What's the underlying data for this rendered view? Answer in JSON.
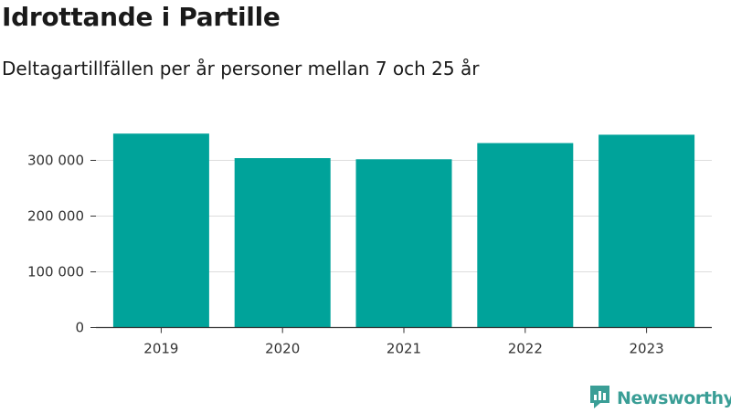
{
  "chart_data": {
    "type": "bar",
    "title": "Idrottande i Partille",
    "subtitle": "Deltagartillfällen per år personer mellan 7 och 25 år",
    "categories": [
      "2019",
      "2020",
      "2021",
      "2022",
      "2023"
    ],
    "values": [
      348000,
      304000,
      302000,
      331000,
      346000
    ],
    "ylim": [
      0,
      350000
    ],
    "yticks": [
      0,
      100000,
      200000,
      300000
    ],
    "ytick_labels": [
      "0",
      "100 000",
      "200 000",
      "300 000"
    ],
    "xlabel": "",
    "ylabel": "",
    "grid": true,
    "bar_color": "#00a39a"
  },
  "brand": {
    "name": "Newsworthy",
    "logo_icon": "newsworthy-bar-chart-icon",
    "color": "#3a9e96"
  }
}
